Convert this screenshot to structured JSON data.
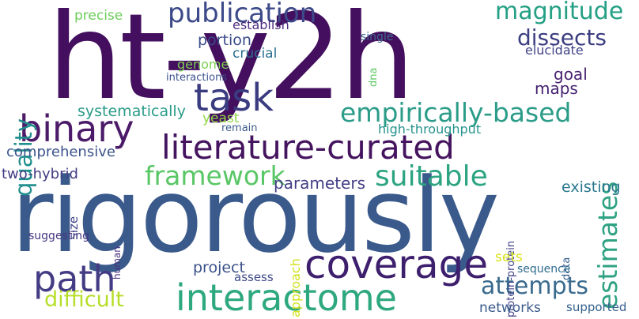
{
  "words": [
    {
      "text": "ht-y2h",
      "color": "#440f5e",
      "rotated": false
    },
    {
      "text": "rigorously",
      "color": "#3b5a8c",
      "rotated": false
    },
    {
      "text": "literature-curated",
      "color": "#45145f",
      "rotated": false
    },
    {
      "text": "interactome",
      "color": "#2ea87f",
      "rotated": false
    },
    {
      "text": "coverage",
      "color": "#3d1f6d",
      "rotated": false
    },
    {
      "text": "binary",
      "color": "#4b1a69",
      "rotated": false
    },
    {
      "text": "path",
      "color": "#433c84",
      "rotated": false
    },
    {
      "text": "task",
      "color": "#3a3b80",
      "rotated": false
    },
    {
      "text": "publication",
      "color": "#3c4a8a",
      "rotated": false
    },
    {
      "text": "empirically-based",
      "color": "#2b9c88",
      "rotated": false
    },
    {
      "text": "quality",
      "color": "#1f8e8d",
      "rotated": true
    },
    {
      "text": "estimates",
      "color": "#2fa283",
      "rotated": true
    },
    {
      "text": "magnitude",
      "color": "#25a085",
      "rotated": false
    },
    {
      "text": "dissects",
      "color": "#3d3e82",
      "rotated": false
    },
    {
      "text": "framework",
      "color": "#59c765",
      "rotated": false
    },
    {
      "text": "suitable",
      "color": "#2ca482",
      "rotated": false
    },
    {
      "text": "attempts",
      "color": "#3a6b8e",
      "rotated": false
    },
    {
      "text": "difficult",
      "color": "#b7de2a",
      "rotated": false
    },
    {
      "text": "precise",
      "color": "#6ccd5a",
      "rotated": false
    },
    {
      "text": "establish",
      "color": "#4b2d7e",
      "rotated": false
    },
    {
      "text": "portion",
      "color": "#3c4c89",
      "rotated": false
    },
    {
      "text": "crucial",
      "color": "#2a6f8e",
      "rotated": false
    },
    {
      "text": "genome",
      "color": "#7ad151",
      "rotated": false
    },
    {
      "text": "interactions",
      "color": "#3a528b",
      "rotated": false
    },
    {
      "text": "goal",
      "color": "#4a2270",
      "rotated": false
    },
    {
      "text": "maps",
      "color": "#44216f",
      "rotated": false
    },
    {
      "text": "elucidate",
      "color": "#404388",
      "rotated": false
    },
    {
      "text": "single",
      "color": "#3f6a8d",
      "rotated": false
    },
    {
      "text": "dna",
      "color": "#5ec962",
      "rotated": true
    },
    {
      "text": "systematically",
      "color": "#2a9c88",
      "rotated": false
    },
    {
      "text": "yeast",
      "color": "#8fd744",
      "rotated": false
    },
    {
      "text": "remain",
      "color": "#3b5a8b",
      "rotated": false
    },
    {
      "text": "high-throughput",
      "color": "#26938d",
      "rotated": false
    },
    {
      "text": "comprehensive",
      "color": "#3b528b",
      "rotated": false
    },
    {
      "text": "two-hybrid",
      "color": "#433d84",
      "rotated": false
    },
    {
      "text": "parameters",
      "color": "#433e85",
      "rotated": false
    },
    {
      "text": "existing",
      "color": "#2a788e",
      "rotated": false
    },
    {
      "text": "protein-protein",
      "color": "#414387",
      "rotated": true
    },
    {
      "text": "size",
      "color": "#404688",
      "rotated": true
    },
    {
      "text": "human",
      "color": "#472f7d",
      "rotated": true
    },
    {
      "text": "suggesting",
      "color": "#453781",
      "rotated": false
    },
    {
      "text": "approach",
      "color": "#d2e21b",
      "rotated": true
    },
    {
      "text": "data",
      "color": "#355f8d",
      "rotated": true
    },
    {
      "text": "project",
      "color": "#3b5189",
      "rotated": false
    },
    {
      "text": "assess",
      "color": "#3e4a89",
      "rotated": false
    },
    {
      "text": "sets",
      "color": "#d8e219",
      "rotated": false
    },
    {
      "text": "sequence",
      "color": "#2f6c8e",
      "rotated": false
    },
    {
      "text": "networks",
      "color": "#3b5a8b",
      "rotated": false
    },
    {
      "text": "supported",
      "color": "#34608d",
      "rotated": false
    }
  ]
}
